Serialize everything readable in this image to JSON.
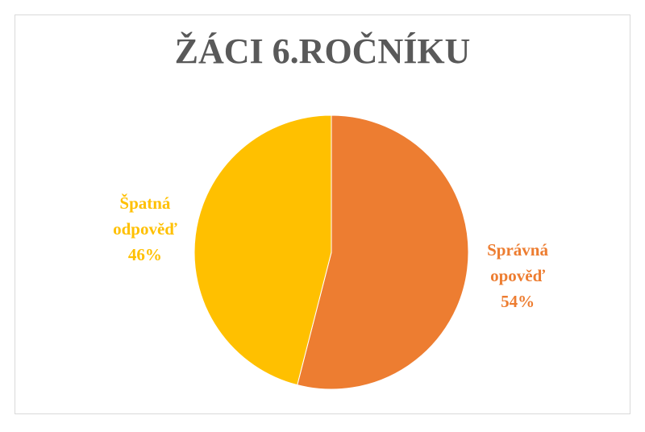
{
  "chart_data": {
    "type": "pie",
    "title": "ŽÁCI 6.ROČNÍKU",
    "categories": [
      "Správná opověď",
      "Špatná odpověď"
    ],
    "values": [
      54,
      46
    ],
    "value_labels": [
      "54%",
      "46%"
    ],
    "colors": [
      "#ED7D31",
      "#FFC000"
    ]
  }
}
